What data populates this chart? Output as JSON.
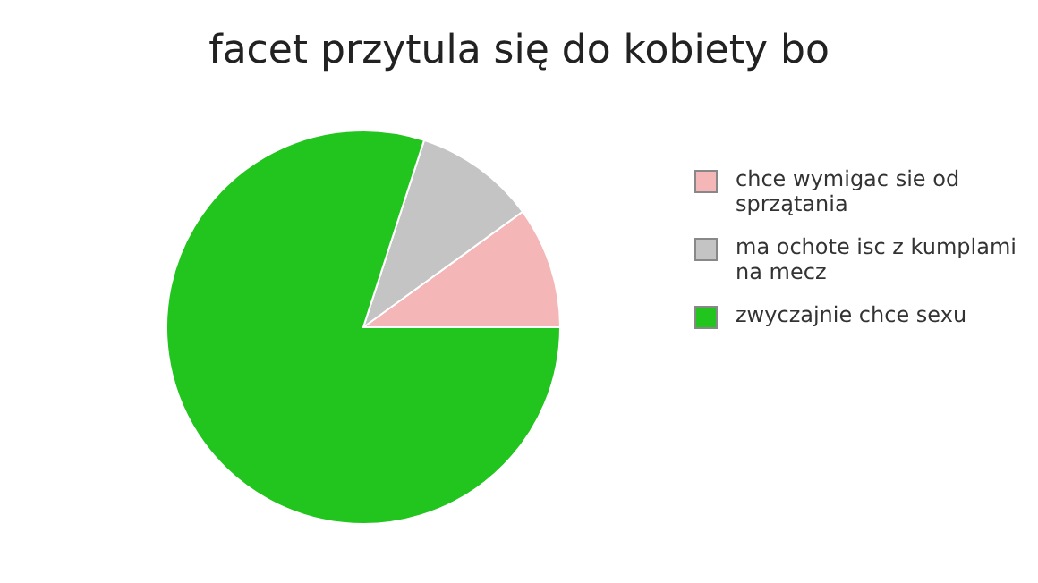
{
  "chart_data": {
    "type": "pie",
    "title": "facet przytula się do kobiety bo",
    "categories": [
      "chce wymigac sie od sprzątania",
      "ma ochote isc z kumplami na mecz",
      "zwyczajnie chce sexu"
    ],
    "values": [
      10,
      10,
      80
    ],
    "colors": [
      "#f4b6b6",
      "#c4c4c4",
      "#22c41e"
    ],
    "legend": "right"
  }
}
